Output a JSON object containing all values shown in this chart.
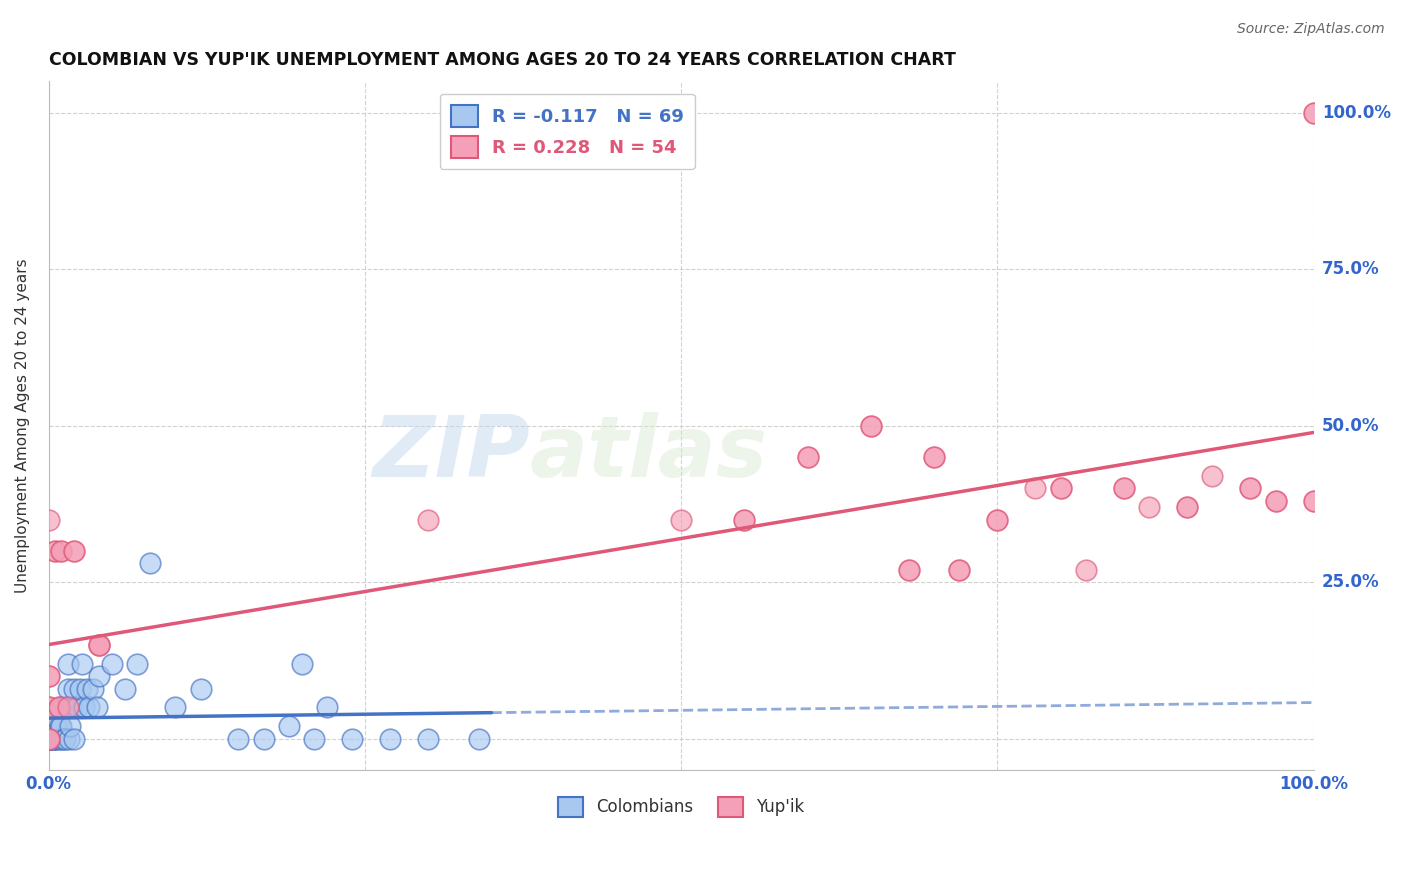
{
  "title": "COLOMBIAN VS YUP'IK UNEMPLOYMENT AMONG AGES 20 TO 24 YEARS CORRELATION CHART",
  "source": "Source: ZipAtlas.com",
  "ylabel": "Unemployment Among Ages 20 to 24 years",
  "xlim": [
    0.0,
    1.0
  ],
  "ylim": [
    -0.05,
    1.05
  ],
  "colombian_R": -0.117,
  "colombian_N": 69,
  "yupik_R": 0.228,
  "yupik_N": 54,
  "colombian_color": "#a8c8f0",
  "yupik_color": "#f4a0b8",
  "colombian_line_color": "#4472c4",
  "yupik_line_color": "#e05878",
  "colombian_x": [
    0.0,
    0.0,
    0.0,
    0.0,
    0.0,
    0.0,
    0.0,
    0.0,
    0.0,
    0.0,
    0.0,
    0.0,
    0.0,
    0.0,
    0.0,
    0.0,
    0.0,
    0.0,
    0.0,
    0.0,
    0.004,
    0.004,
    0.005,
    0.005,
    0.005,
    0.006,
    0.006,
    0.007,
    0.008,
    0.009,
    0.01,
    0.01,
    0.01,
    0.011,
    0.012,
    0.013,
    0.014,
    0.015,
    0.015,
    0.016,
    0.017,
    0.018,
    0.02,
    0.02,
    0.022,
    0.025,
    0.026,
    0.028,
    0.03,
    0.032,
    0.035,
    0.038,
    0.04,
    0.05,
    0.06,
    0.07,
    0.08,
    0.1,
    0.12,
    0.15,
    0.17,
    0.19,
    0.21,
    0.24,
    0.27,
    0.3,
    0.34,
    0.2,
    0.22
  ],
  "colombian_y": [
    0.0,
    0.0,
    0.0,
    0.0,
    0.0,
    0.0,
    0.0,
    0.0,
    0.0,
    0.0,
    0.0,
    0.0,
    0.0,
    0.0,
    0.02,
    0.02,
    0.02,
    0.02,
    0.03,
    0.03,
    0.0,
    0.0,
    0.0,
    0.0,
    0.02,
    0.02,
    0.02,
    0.03,
    0.0,
    0.02,
    0.0,
    0.02,
    0.05,
    0.05,
    0.0,
    0.0,
    0.05,
    0.08,
    0.12,
    0.0,
    0.02,
    0.05,
    0.0,
    0.08,
    0.05,
    0.08,
    0.12,
    0.05,
    0.08,
    0.05,
    0.08,
    0.05,
    0.1,
    0.12,
    0.08,
    0.12,
    0.28,
    0.05,
    0.08,
    0.0,
    0.0,
    0.02,
    0.0,
    0.0,
    0.0,
    0.0,
    0.0,
    0.12,
    0.05
  ],
  "yupik_x": [
    0.0,
    0.0,
    0.0,
    0.0,
    0.0,
    0.0,
    0.0,
    0.0,
    0.005,
    0.005,
    0.008,
    0.008,
    0.01,
    0.01,
    0.015,
    0.02,
    0.02,
    0.04,
    0.04,
    0.04,
    0.3,
    0.5,
    0.55,
    0.55,
    0.6,
    0.6,
    0.65,
    0.65,
    0.68,
    0.68,
    0.7,
    0.7,
    0.72,
    0.72,
    0.75,
    0.75,
    0.78,
    0.8,
    0.8,
    0.82,
    0.85,
    0.85,
    0.87,
    0.9,
    0.9,
    0.92,
    0.95,
    0.95,
    0.97,
    0.97,
    1.0,
    1.0,
    1.0,
    1.0
  ],
  "yupik_y": [
    0.0,
    0.0,
    0.0,
    0.05,
    0.05,
    0.1,
    0.1,
    0.35,
    0.3,
    0.3,
    0.05,
    0.05,
    0.3,
    0.3,
    0.05,
    0.3,
    0.3,
    0.15,
    0.15,
    0.15,
    0.35,
    0.35,
    0.35,
    0.35,
    0.45,
    0.45,
    0.5,
    0.5,
    0.27,
    0.27,
    0.45,
    0.45,
    0.27,
    0.27,
    0.35,
    0.35,
    0.4,
    0.4,
    0.4,
    0.27,
    0.4,
    0.4,
    0.37,
    0.37,
    0.37,
    0.42,
    0.4,
    0.4,
    0.38,
    0.38,
    0.38,
    0.38,
    1.0,
    1.0
  ],
  "ytick_labels_right": [
    "100.0%",
    "75.0%",
    "50.0%",
    "25.0%"
  ],
  "ytick_positions_right": [
    1.0,
    0.75,
    0.5,
    0.25
  ]
}
